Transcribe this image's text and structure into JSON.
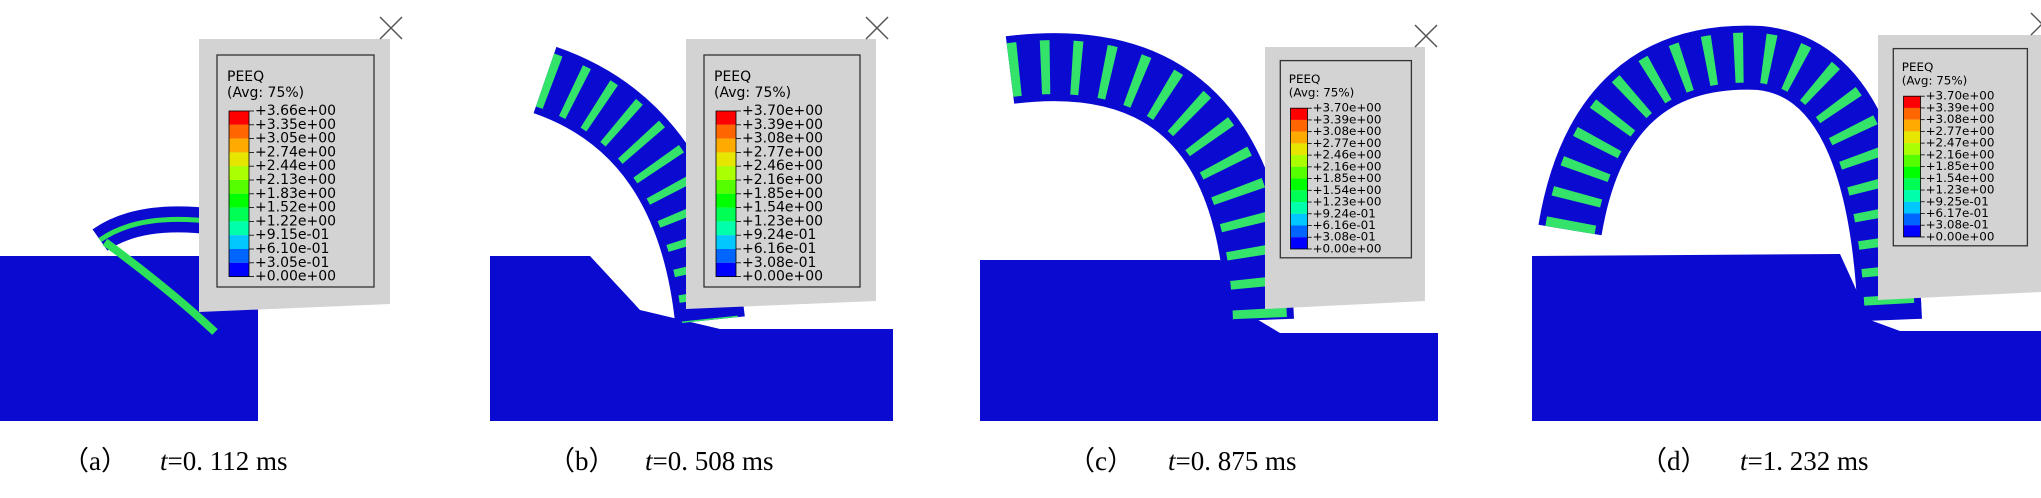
{
  "panels": [
    {
      "legend": {
        "title": "PEEQ",
        "subtitle": "(Avg: 75%)",
        "labels": [
          "+3.66e+00",
          "+3.35e+00",
          "+3.05e+00",
          "+2.74e+00",
          "+2.44e+00",
          "+2.13e+00",
          "+1.83e+00",
          "+1.52e+00",
          "+1.22e+00",
          "+9.15e-01",
          "+6.10e-01",
          "+3.05e-01",
          "+0.00e+00"
        ]
      },
      "caption": {
        "label": "（a）",
        "variable": "t",
        "value": "=0. 112 ms"
      }
    },
    {
      "legend": {
        "title": "PEEQ",
        "subtitle": "(Avg: 75%)",
        "labels": [
          "+3.70e+00",
          "+3.39e+00",
          "+3.08e+00",
          "+2.77e+00",
          "+2.46e+00",
          "+2.16e+00",
          "+1.85e+00",
          "+1.54e+00",
          "+1.23e+00",
          "+9.24e-01",
          "+6.16e-01",
          "+3.08e-01",
          "+0.00e+00"
        ]
      },
      "caption": {
        "label": "（b）",
        "variable": "t",
        "value": "=0. 508 ms"
      }
    },
    {
      "legend": {
        "title": "PEEQ",
        "subtitle": "(Avg: 75%)",
        "labels": [
          "+3.70e+00",
          "+3.39e+00",
          "+3.08e+00",
          "+2.77e+00",
          "+2.46e+00",
          "+2.16e+00",
          "+1.85e+00",
          "+1.54e+00",
          "+1.23e+00",
          "+9.24e-01",
          "+6.16e-01",
          "+3.08e-01",
          "+0.00e+00"
        ]
      },
      "caption": {
        "label": "（c）",
        "variable": "t",
        "value": "=0. 875 ms"
      }
    },
    {
      "legend": {
        "title": "PEEQ",
        "subtitle": "(Avg: 75%)",
        "labels": [
          "+3.70e+00",
          "+3.39e+00",
          "+3.08e+00",
          "+2.77e+00",
          "+2.47e+00",
          "+2.16e+00",
          "+1.85e+00",
          "+1.54e+00",
          "+1.23e+00",
          "+9.25e-01",
          "+6.17e-01",
          "+3.08e-01",
          "+0.00e+00"
        ]
      },
      "caption": {
        "label": "（d）",
        "variable": "t",
        "value": "=1. 232 ms"
      }
    }
  ],
  "legend_colors": [
    "#ff0000",
    "#ff6600",
    "#ffaa00",
    "#e6e600",
    "#aaff00",
    "#55ff00",
    "#00ff00",
    "#00ff55",
    "#00ffaa",
    "#00c8ff",
    "#0064ff",
    "#0000ff"
  ]
}
